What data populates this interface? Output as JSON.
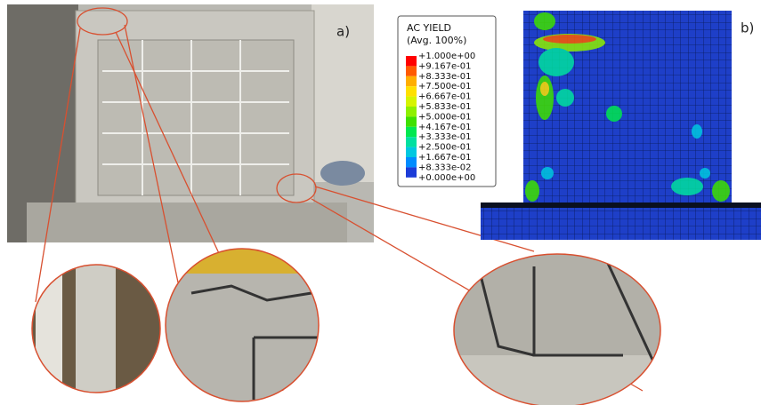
{
  "panel_a": {
    "label": "a)"
  },
  "panel_b": {
    "label": "b)",
    "legend": {
      "title": "AC YIELD",
      "subtitle": "(Avg. 100%)",
      "labels": [
        "+1.000e+00",
        "+9.167e-01",
        "+8.333e-01",
        "+7.500e-01",
        "+6.667e-01",
        "+5.833e-01",
        "+5.000e-01",
        "+4.167e-01",
        "+3.333e-01",
        "+2.500e-01",
        "+1.667e-01",
        "+8.333e-02",
        "+0.000e+00"
      ],
      "colors": [
        "#ff0000",
        "#ff5a00",
        "#ffae00",
        "#ffe000",
        "#d6f400",
        "#8ef000",
        "#3ee000",
        "#00e850",
        "#00e0a0",
        "#00c8e0",
        "#008cff",
        "#1c3cd8"
      ]
    }
  }
}
